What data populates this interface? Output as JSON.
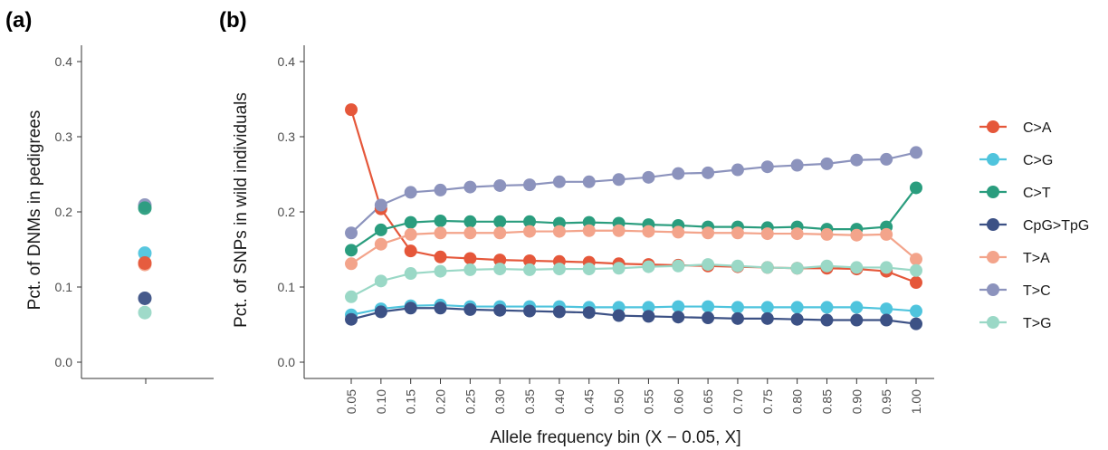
{
  "chart_data": [
    {
      "panel_label": "(a)",
      "type": "scatter",
      "ylabel": "Pct. of DNMs in pedigrees",
      "ylim": [
        0,
        0.42
      ],
      "yticks": [
        "0.0",
        "0.1",
        "0.2",
        "0.3",
        "0.4"
      ],
      "ytick_values": [
        0,
        0.1,
        0.2,
        0.3,
        0.4
      ],
      "grid": false,
      "points": [
        {
          "series": "T>C",
          "value": 0.209
        },
        {
          "series": "C>T",
          "value": 0.205
        },
        {
          "series": "C>G",
          "value": 0.145
        },
        {
          "series": "T>A",
          "value": 0.13
        },
        {
          "series": "C>A",
          "value": 0.132
        },
        {
          "series": "CpG>TpG",
          "value": 0.085
        },
        {
          "series": "T>G",
          "value": 0.066
        }
      ]
    },
    {
      "panel_label": "(b)",
      "type": "line",
      "xlabel": "Allele frequency bin (X − 0.05, X]",
      "ylabel": "Pct. of SNPs in wild individuals",
      "ylim": [
        0,
        0.42
      ],
      "yticks": [
        "0.0",
        "0.1",
        "0.2",
        "0.3",
        "0.4"
      ],
      "ytick_values": [
        0,
        0.1,
        0.2,
        0.3,
        0.4
      ],
      "x": [
        "0.05",
        "0.10",
        "0.15",
        "0.20",
        "0.25",
        "0.30",
        "0.35",
        "0.40",
        "0.45",
        "0.50",
        "0.55",
        "0.60",
        "0.65",
        "0.70",
        "0.75",
        "0.80",
        "0.85",
        "0.90",
        "0.95",
        "1.00"
      ],
      "grid": false,
      "legend_position": "right",
      "series": [
        {
          "name": "C>A",
          "color": "#e5573a",
          "values": [
            0.336,
            0.204,
            0.148,
            0.14,
            0.138,
            0.136,
            0.135,
            0.134,
            0.133,
            0.131,
            0.13,
            0.129,
            0.128,
            0.127,
            0.126,
            0.125,
            0.125,
            0.124,
            0.121,
            0.106
          ]
        },
        {
          "name": "C>G",
          "color": "#4fc4dd",
          "values": [
            0.063,
            0.071,
            0.075,
            0.076,
            0.074,
            0.074,
            0.074,
            0.074,
            0.073,
            0.073,
            0.073,
            0.074,
            0.074,
            0.073,
            0.073,
            0.073,
            0.073,
            0.073,
            0.071,
            0.068
          ]
        },
        {
          "name": "C>T",
          "color": "#2a9d7e",
          "values": [
            0.149,
            0.176,
            0.186,
            0.188,
            0.187,
            0.187,
            0.187,
            0.185,
            0.186,
            0.185,
            0.183,
            0.182,
            0.18,
            0.18,
            0.179,
            0.18,
            0.177,
            0.177,
            0.18,
            0.232
          ]
        },
        {
          "name": "CpG>TpG",
          "color": "#3c5185",
          "values": [
            0.057,
            0.067,
            0.072,
            0.072,
            0.07,
            0.069,
            0.068,
            0.067,
            0.066,
            0.062,
            0.061,
            0.06,
            0.059,
            0.058,
            0.058,
            0.057,
            0.056,
            0.056,
            0.056,
            0.051
          ]
        },
        {
          "name": "T>A",
          "color": "#f3a48b",
          "values": [
            0.131,
            0.157,
            0.17,
            0.172,
            0.172,
            0.172,
            0.174,
            0.174,
            0.175,
            0.175,
            0.174,
            0.173,
            0.172,
            0.172,
            0.171,
            0.171,
            0.17,
            0.169,
            0.17,
            0.137
          ]
        },
        {
          "name": "T>C",
          "color": "#8c93bd",
          "values": [
            0.172,
            0.209,
            0.226,
            0.229,
            0.233,
            0.235,
            0.236,
            0.24,
            0.24,
            0.243,
            0.246,
            0.251,
            0.252,
            0.256,
            0.26,
            0.262,
            0.264,
            0.269,
            0.27,
            0.279
          ]
        },
        {
          "name": "T>G",
          "color": "#9ad8c6",
          "values": [
            0.087,
            0.108,
            0.118,
            0.121,
            0.123,
            0.124,
            0.123,
            0.124,
            0.124,
            0.125,
            0.127,
            0.128,
            0.13,
            0.128,
            0.126,
            0.125,
            0.128,
            0.126,
            0.126,
            0.122
          ]
        }
      ]
    }
  ]
}
